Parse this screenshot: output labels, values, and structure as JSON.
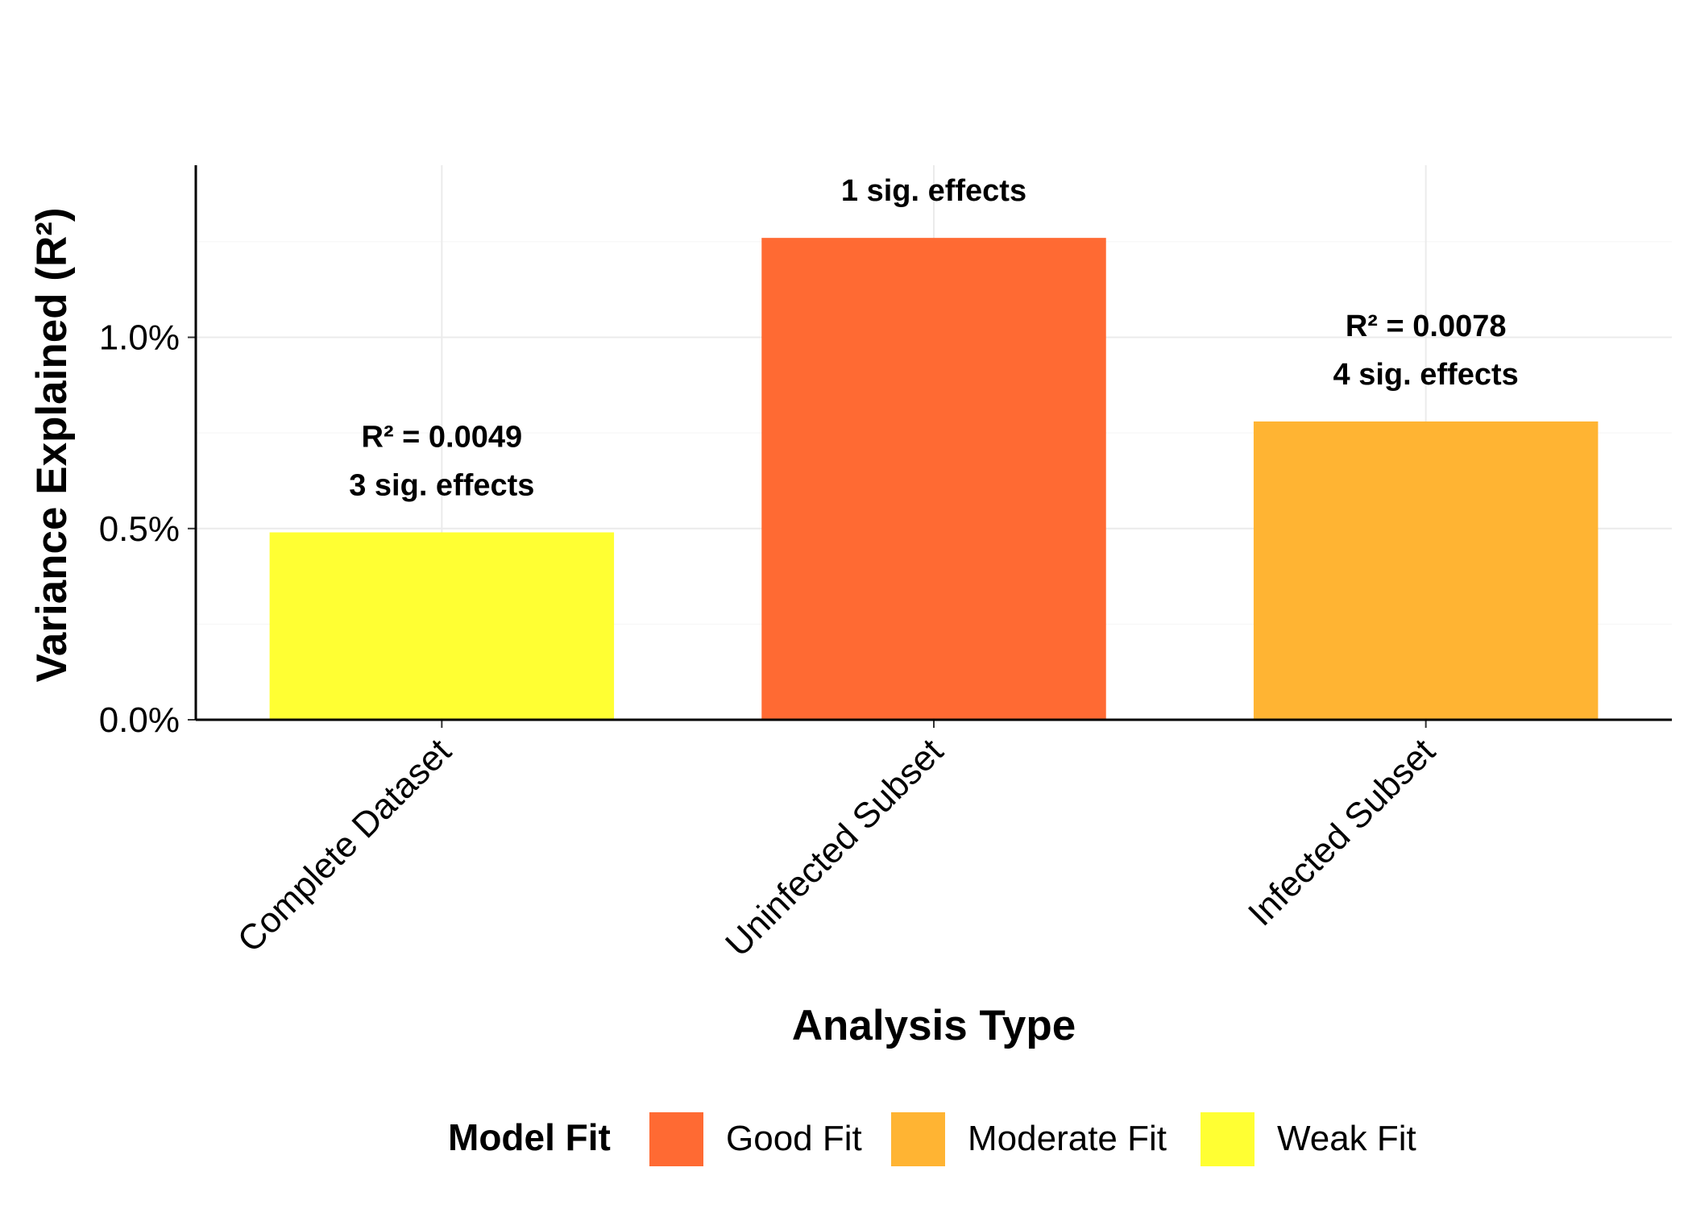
{
  "chart_data": {
    "type": "bar",
    "title": "",
    "xlabel": "Analysis Type",
    "ylabel": "Variance Explained (R²)",
    "ylim": [
      0,
      0.0145
    ],
    "yticks": [
      {
        "value": 0.0,
        "label": "0.0%"
      },
      {
        "value": 0.005,
        "label": "0.5%"
      },
      {
        "value": 0.01,
        "label": "1.0%"
      }
    ],
    "grid": true,
    "categories": [
      "Complete Dataset",
      "Uninfected Subset",
      "Infected Subset"
    ],
    "values": [
      0.0049,
      0.0126,
      0.0078
    ],
    "fit": [
      "Weak Fit",
      "Good Fit",
      "Moderate Fit"
    ],
    "annotations": [
      {
        "r2": "R² = 0.0049",
        "effects": "3 sig. effects"
      },
      {
        "r2": "",
        "effects": "1 sig. effects"
      },
      {
        "r2": "R² = 0.0078",
        "effects": "4 sig. effects"
      }
    ],
    "legend": {
      "title": "Model Fit",
      "placement": "bottom",
      "items": [
        {
          "label": "Good Fit",
          "color": "#FF6A33"
        },
        {
          "label": "Moderate Fit",
          "color": "#FFB433"
        },
        {
          "label": "Weak Fit",
          "color": "#FFFF33"
        }
      ]
    },
    "colors": {
      "Good Fit": "#FF6A33",
      "Moderate Fit": "#FFB433",
      "Weak Fit": "#FFFF33"
    }
  }
}
